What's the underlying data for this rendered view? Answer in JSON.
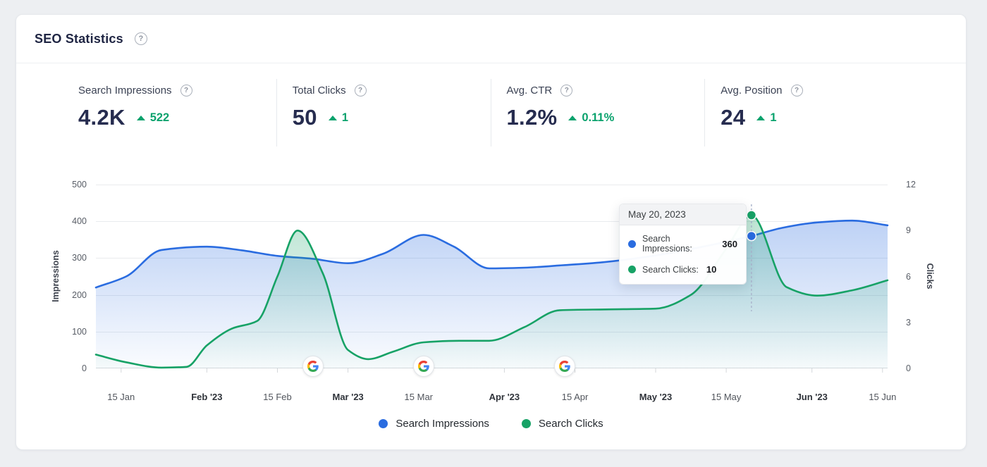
{
  "header": {
    "title": "SEO Statistics"
  },
  "icons": {
    "help_glyph": "?"
  },
  "colors": {
    "impressions_blue": "#2a6ce0",
    "clicks_green": "#17a266",
    "delta_green": "#0aa26d",
    "navy_text": "#262c4f"
  },
  "stats": [
    {
      "label": "Search Impressions",
      "value": "4.2K",
      "delta": "522"
    },
    {
      "label": "Total Clicks",
      "value": "50",
      "delta": "1"
    },
    {
      "label": "Avg. CTR",
      "value": "1.2%",
      "delta": "0.11%"
    },
    {
      "label": "Avg. Position",
      "value": "24",
      "delta": "1"
    }
  ],
  "chart_data": {
    "type": "area",
    "title": "SEO Statistics",
    "grid": "horizontal",
    "legend_position": "bottom-center",
    "y_left": {
      "label": "Impressions",
      "range": [
        0,
        500
      ],
      "ticks": [
        0,
        100,
        200,
        300,
        400,
        500
      ]
    },
    "y_right": {
      "label": "Clicks",
      "range": [
        0,
        12
      ],
      "ticks": [
        0,
        3,
        6,
        9,
        12
      ]
    },
    "x_axis": {
      "day_span": 157,
      "labels": [
        {
          "text": "15 Jan",
          "day": 5,
          "bold": false
        },
        {
          "text": "Feb '23",
          "day": 22,
          "bold": true
        },
        {
          "text": "15 Feb",
          "day": 36,
          "bold": false
        },
        {
          "text": "Mar '23",
          "day": 50,
          "bold": true
        },
        {
          "text": "15 Mar",
          "day": 64,
          "bold": false
        },
        {
          "text": "Apr '23",
          "day": 81,
          "bold": true
        },
        {
          "text": "15 Apr",
          "day": 95,
          "bold": false
        },
        {
          "text": "May '23",
          "day": 111,
          "bold": true
        },
        {
          "text": "15 May",
          "day": 125,
          "bold": false
        },
        {
          "text": "Jun '23",
          "day": 142,
          "bold": true
        },
        {
          "text": "15 Jun",
          "day": 156,
          "bold": false
        }
      ]
    },
    "series": [
      {
        "name": "Search Impressions",
        "axis": "left",
        "color": "#2a6ce0",
        "points": [
          [
            0,
            220
          ],
          [
            6,
            250
          ],
          [
            13,
            322
          ],
          [
            22,
            331
          ],
          [
            29,
            321
          ],
          [
            36,
            306
          ],
          [
            43,
            298
          ],
          [
            50,
            286
          ],
          [
            57,
            312
          ],
          [
            65,
            363
          ],
          [
            71,
            331
          ],
          [
            78,
            272
          ],
          [
            85,
            274
          ],
          [
            92,
            280
          ],
          [
            100,
            288
          ],
          [
            111,
            307
          ],
          [
            120,
            330
          ],
          [
            130,
            360
          ],
          [
            136,
            382
          ],
          [
            143,
            397
          ],
          [
            150,
            402
          ],
          [
            157,
            389
          ]
        ]
      },
      {
        "name": "Search Clicks",
        "axis": "right",
        "color": "#17a266",
        "points": [
          [
            0,
            0.9
          ],
          [
            6,
            0.4
          ],
          [
            13,
            0.05
          ],
          [
            18,
            0.1
          ],
          [
            22,
            1.5
          ],
          [
            27,
            2.6
          ],
          [
            32,
            3.1
          ],
          [
            36,
            6.0
          ],
          [
            40,
            9.0
          ],
          [
            45,
            6.2
          ],
          [
            50,
            1.2
          ],
          [
            54,
            0.6
          ],
          [
            59,
            1.1
          ],
          [
            65,
            1.7
          ],
          [
            72,
            1.8
          ],
          [
            78,
            1.8
          ],
          [
            85,
            2.7
          ],
          [
            92,
            3.8
          ],
          [
            101,
            3.85
          ],
          [
            111,
            3.9
          ],
          [
            118,
            4.8
          ],
          [
            125,
            7.8
          ],
          [
            130,
            10
          ],
          [
            137,
            5.3
          ],
          [
            143,
            4.75
          ],
          [
            150,
            5.1
          ],
          [
            157,
            5.75
          ]
        ]
      }
    ],
    "google_update_markers": {
      "days": [
        43,
        65,
        93
      ]
    },
    "hover": {
      "day": 130,
      "impressions": 360,
      "clicks": 10
    },
    "tooltip": {
      "date": "May 20, 2023",
      "rows": [
        {
          "label": "Search Impressions:",
          "value": "360",
          "color": "#2a6ce0"
        },
        {
          "label": "Search Clicks:",
          "value": "10",
          "color": "#17a266"
        }
      ]
    },
    "legend": [
      {
        "label": "Search Impressions",
        "color": "#2a6ce0"
      },
      {
        "label": "Search Clicks",
        "color": "#17a266"
      }
    ]
  }
}
